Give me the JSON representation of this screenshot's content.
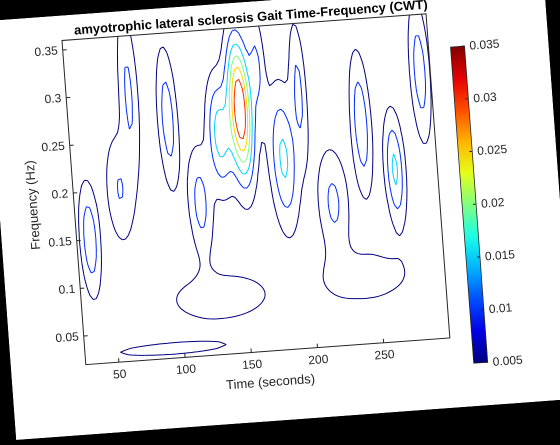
{
  "chart_data": {
    "type": "heatmap",
    "subtype": "contour",
    "title": "amyotrophic lateral sclerosis Gait Time-Frequency (CWT)",
    "xlabel": "Time (seconds)",
    "ylabel": "Frequency (Hz)",
    "xlim": [
      25,
      300
    ],
    "ylim": [
      0.02,
      0.36
    ],
    "xticks": [
      50,
      100,
      150,
      200,
      250
    ],
    "yticks": [
      0.05,
      0.1,
      0.15,
      0.2,
      0.25,
      0.3,
      0.35
    ],
    "colorbar": {
      "colormap": "jet",
      "min": 0.005,
      "max": 0.035,
      "ticks": [
        0.005,
        0.01,
        0.015,
        0.02,
        0.025,
        0.03,
        0.035
      ]
    },
    "contour_levels": [
      0.005,
      0.01,
      0.015,
      0.02,
      0.025,
      0.03
    ],
    "peaks": [
      {
        "x": 155,
        "y": 0.275,
        "value": 0.035,
        "sx": 6,
        "sy": 0.05
      },
      {
        "x": 138,
        "y": 0.25,
        "value": 0.016,
        "sx": 6,
        "sy": 0.04
      },
      {
        "x": 185,
        "y": 0.22,
        "value": 0.015,
        "sx": 7,
        "sy": 0.05
      },
      {
        "x": 245,
        "y": 0.25,
        "value": 0.013,
        "sx": 5,
        "sy": 0.05
      },
      {
        "x": 268,
        "y": 0.2,
        "value": 0.015,
        "sx": 5,
        "sy": 0.04
      },
      {
        "x": 100,
        "y": 0.27,
        "value": 0.012,
        "sx": 5,
        "sy": 0.05
      },
      {
        "x": 72,
        "y": 0.3,
        "value": 0.01,
        "sx": 5,
        "sy": 0.06
      },
      {
        "x": 35,
        "y": 0.15,
        "value": 0.013,
        "sx": 5,
        "sy": 0.04
      },
      {
        "x": 120,
        "y": 0.18,
        "value": 0.011,
        "sx": 6,
        "sy": 0.04
      },
      {
        "x": 220,
        "y": 0.17,
        "value": 0.01,
        "sx": 8,
        "sy": 0.04
      },
      {
        "x": 292,
        "y": 0.3,
        "value": 0.012,
        "sx": 5,
        "sy": 0.05
      },
      {
        "x": 60,
        "y": 0.2,
        "value": 0.009,
        "sx": 7,
        "sy": 0.04
      },
      {
        "x": 200,
        "y": 0.29,
        "value": 0.01,
        "sx": 4,
        "sy": 0.05
      },
      {
        "x": 170,
        "y": 0.32,
        "value": 0.009,
        "sx": 4,
        "sy": 0.04
      },
      {
        "x": 130,
        "y": 0.08,
        "value": 0.007,
        "sx": 30,
        "sy": 0.02
      },
      {
        "x": 240,
        "y": 0.09,
        "value": 0.007,
        "sx": 25,
        "sy": 0.02
      },
      {
        "x": 90,
        "y": 0.03,
        "value": 0.006,
        "sx": 40,
        "sy": 0.006
      }
    ]
  }
}
